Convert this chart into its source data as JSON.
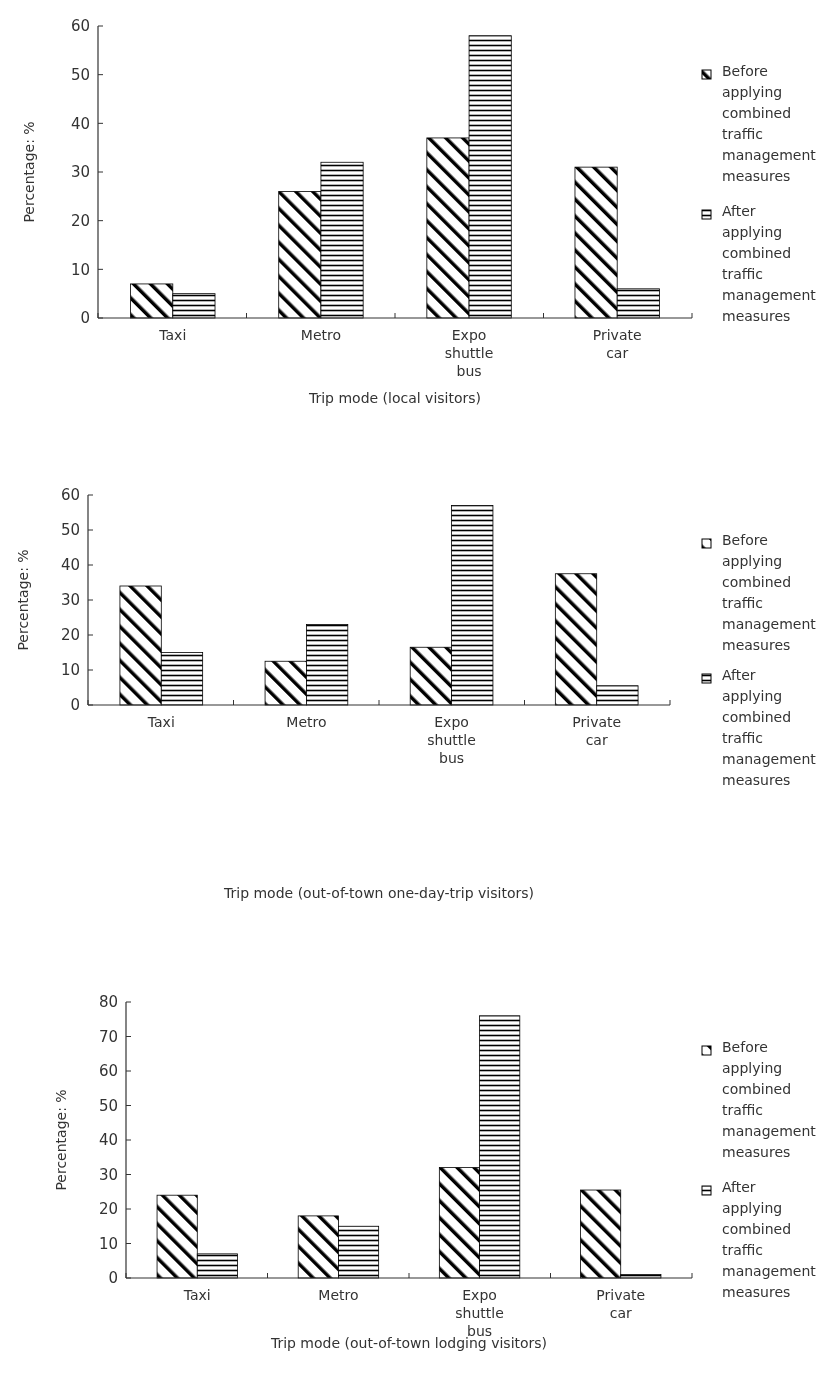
{
  "chart_data": [
    {
      "type": "bar",
      "xlabel": "Trip mode (local visitors)",
      "ylabel": "Percentage: %",
      "categories": [
        "Taxi",
        "Metro",
        "Expo shuttle bus",
        "Private car"
      ],
      "series": [
        {
          "name": "Before applying combined traffic management measures",
          "color": "#000000",
          "values": [
            7,
            26,
            37,
            31
          ]
        },
        {
          "name": "After applying combined traffic management measures",
          "color": "#000000",
          "values": [
            5,
            32,
            58,
            6
          ]
        }
      ],
      "ylim": [
        0,
        60
      ],
      "yticks": [
        0,
        10,
        20,
        30,
        40,
        50,
        60
      ],
      "grid": false,
      "legend": "right"
    },
    {
      "type": "bar",
      "xlabel": "Trip mode (out-of-town one-day-trip visitors)",
      "ylabel": "Percentage: %",
      "categories": [
        "Taxi",
        "Metro",
        "Expo shuttle bus",
        "Private car"
      ],
      "series": [
        {
          "name": "Before applying combined traffic management measures",
          "color": "#000000",
          "values": [
            34,
            12.5,
            16.5,
            37.5
          ]
        },
        {
          "name": "After applying combined traffic management measures",
          "color": "#000000",
          "values": [
            15,
            23,
            57,
            5.5
          ]
        }
      ],
      "ylim": [
        0,
        60
      ],
      "yticks": [
        0,
        10,
        20,
        30,
        40,
        50,
        60
      ],
      "grid": false,
      "legend": "right"
    },
    {
      "type": "bar",
      "xlabel": "Trip mode (out-of-town lodging visitors)",
      "ylabel": "Percentage: %",
      "categories": [
        "Taxi",
        "Metro",
        "Expo shuttle bus",
        "Private car"
      ],
      "series": [
        {
          "name": "Before applying combined traffic management measures",
          "color": "#000000",
          "values": [
            24,
            18,
            32,
            25.5
          ]
        },
        {
          "name": "After applying combined traffic management measures",
          "color": "#000000",
          "values": [
            7,
            15,
            76,
            1
          ]
        }
      ],
      "ylim": [
        0,
        80
      ],
      "yticks": [
        0,
        10,
        20,
        30,
        40,
        50,
        60,
        70,
        80
      ],
      "grid": false,
      "legend": "right"
    }
  ]
}
